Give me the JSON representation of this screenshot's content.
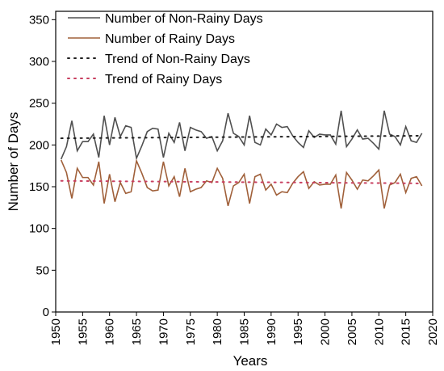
{
  "chart_data": {
    "type": "line",
    "x_label": "Years",
    "y_label": "Number of Days",
    "x": [
      1951,
      1952,
      1953,
      1954,
      1955,
      1956,
      1957,
      1958,
      1959,
      1960,
      1961,
      1962,
      1963,
      1964,
      1965,
      1966,
      1967,
      1968,
      1969,
      1970,
      1971,
      1972,
      1973,
      1974,
      1975,
      1976,
      1977,
      1978,
      1979,
      1980,
      1981,
      1982,
      1983,
      1984,
      1985,
      1986,
      1987,
      1988,
      1989,
      1990,
      1991,
      1992,
      1993,
      1994,
      1995,
      1996,
      1997,
      1998,
      1999,
      2000,
      2001,
      2002,
      2003,
      2004,
      2005,
      2006,
      2007,
      2008,
      2009,
      2010,
      2011,
      2012,
      2013,
      2014,
      2015,
      2016,
      2017,
      2018
    ],
    "series": [
      {
        "name": "Number of Non-Rainy Days",
        "color": "#505050",
        "style": "solid",
        "values": [
          183,
          198,
          229,
          193,
          204,
          204,
          213,
          185,
          235,
          200,
          233,
          210,
          223,
          221,
          184,
          199,
          216,
          220,
          219,
          185,
          214,
          203,
          227,
          193,
          221,
          218,
          216,
          208,
          210,
          193,
          205,
          238,
          214,
          210,
          200,
          235,
          203,
          200,
          219,
          212,
          225,
          221,
          222,
          211,
          203,
          197,
          217,
          209,
          213,
          212,
          212,
          201,
          241,
          198,
          207,
          218,
          207,
          208,
          202,
          195,
          241,
          213,
          210,
          200,
          222,
          205,
          203,
          214
        ]
      },
      {
        "name": "Number of Rainy Days",
        "color": "#a0603a",
        "style": "solid",
        "values": [
          182,
          167,
          136,
          172,
          161,
          161,
          152,
          180,
          130,
          165,
          132,
          155,
          142,
          144,
          181,
          166,
          149,
          145,
          146,
          180,
          151,
          162,
          138,
          172,
          144,
          147,
          149,
          157,
          155,
          172,
          160,
          127,
          151,
          155,
          165,
          130,
          162,
          165,
          146,
          153,
          140,
          144,
          143,
          154,
          162,
          168,
          148,
          156,
          152,
          153,
          153,
          164,
          124,
          167,
          158,
          147,
          158,
          157,
          163,
          170,
          124,
          152,
          155,
          165,
          143,
          160,
          162,
          151
        ]
      },
      {
        "name": "Trend of Non-Rainy Days",
        "color": "#202020",
        "style": "dotted",
        "x": [
          1951,
          2018
        ],
        "values": [
          208,
          211
        ]
      },
      {
        "name": "Trend of Rainy Days",
        "color": "#c84060",
        "style": "dotted",
        "x": [
          1951,
          2018
        ],
        "values": [
          157,
          154
        ]
      }
    ],
    "xlim": [
      1950,
      2020
    ],
    "xticks": [
      1950,
      1955,
      1960,
      1965,
      1970,
      1975,
      1980,
      1985,
      1990,
      1995,
      2000,
      2005,
      2010,
      2015,
      2020
    ],
    "ylim": [
      0,
      360
    ],
    "yticks": [
      0,
      50,
      100,
      150,
      200,
      250,
      300,
      350
    ],
    "legend": "upper-left",
    "grid": false
  }
}
